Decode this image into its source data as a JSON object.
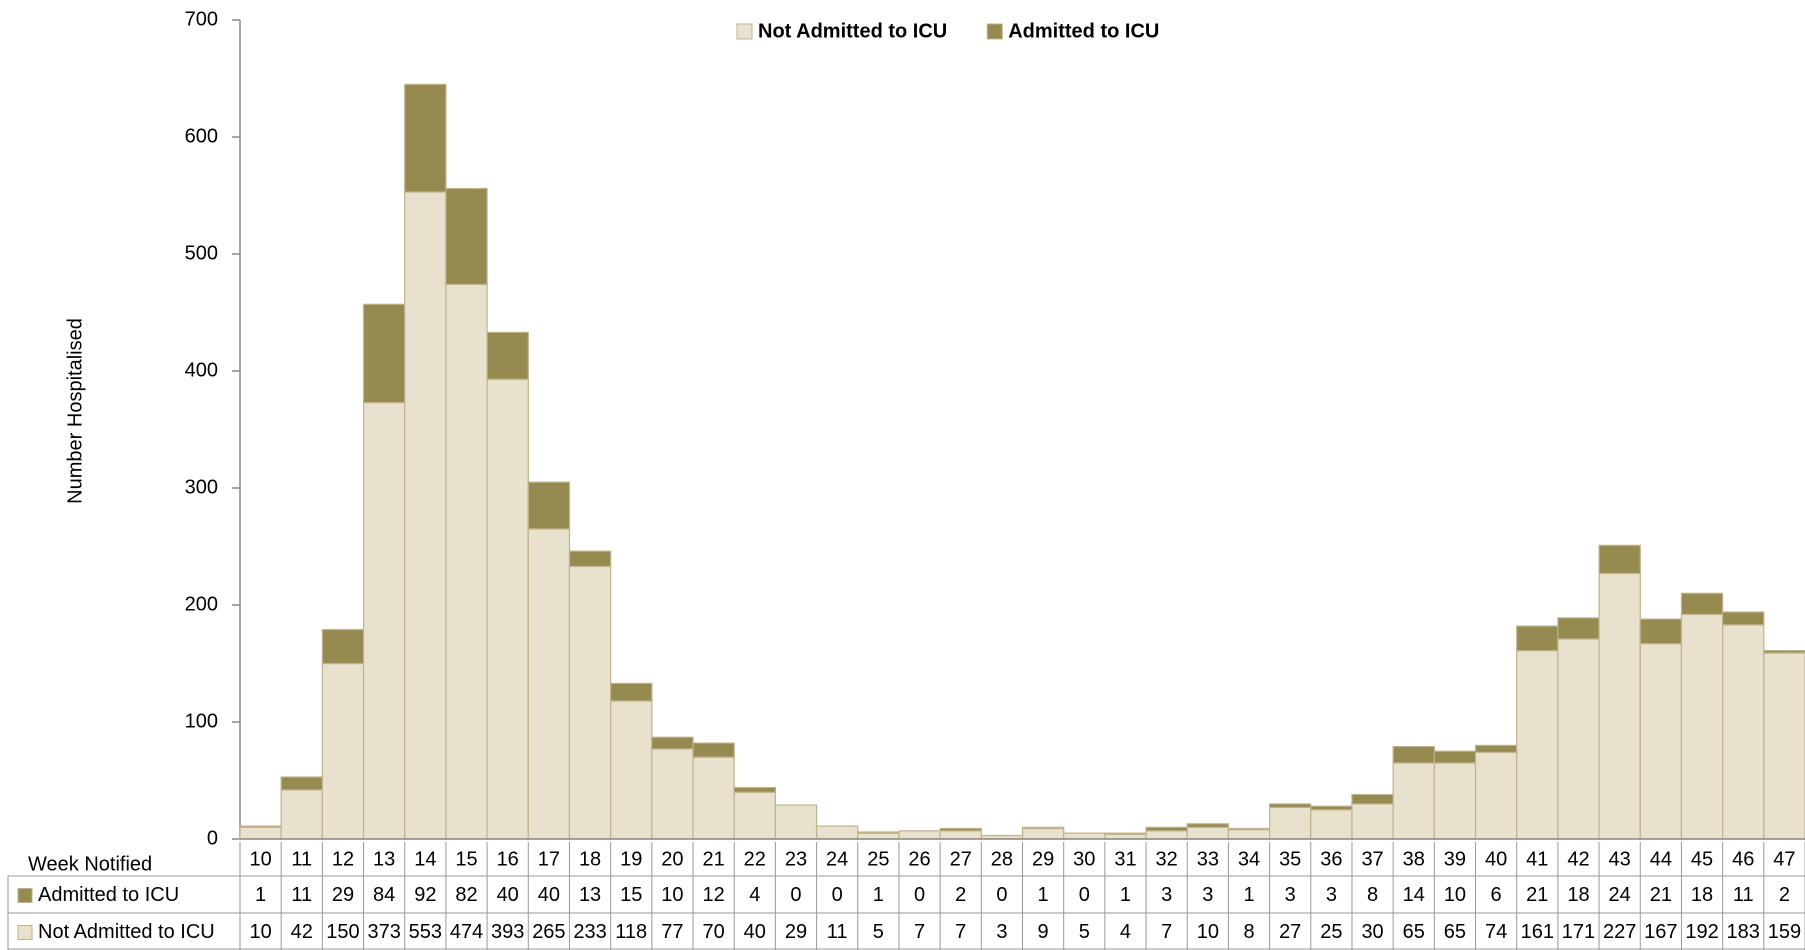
{
  "chart_data": {
    "type": "bar",
    "stacked": true,
    "y_label": "Number Hospitalised",
    "x_label": "Week Notified",
    "categories": [
      "10",
      "11",
      "12",
      "13",
      "14",
      "15",
      "16",
      "17",
      "18",
      "19",
      "20",
      "21",
      "22",
      "23",
      "24",
      "25",
      "26",
      "27",
      "28",
      "29",
      "30",
      "31",
      "32",
      "33",
      "34",
      "35",
      "36",
      "37",
      "38",
      "39",
      "40",
      "41",
      "42",
      "43",
      "44",
      "45",
      "46",
      "47"
    ],
    "series": [
      {
        "name": "Not Admitted to ICU",
        "color": "#e8e1cd",
        "values": [
          10,
          42,
          150,
          373,
          553,
          474,
          393,
          265,
          233,
          118,
          77,
          70,
          40,
          29,
          11,
          5,
          7,
          7,
          3,
          9,
          5,
          4,
          7,
          10,
          8,
          27,
          25,
          30,
          65,
          65,
          74,
          161,
          171,
          227,
          167,
          192,
          183,
          159
        ]
      },
      {
        "name": "Admitted to ICU",
        "color": "#958b51",
        "values": [
          1,
          11,
          29,
          84,
          92,
          82,
          40,
          40,
          13,
          15,
          10,
          12,
          4,
          0,
          0,
          1,
          0,
          2,
          0,
          1,
          0,
          1,
          3,
          3,
          1,
          3,
          3,
          8,
          14,
          10,
          6,
          21,
          18,
          24,
          21,
          18,
          11,
          2
        ]
      }
    ],
    "ylim": [
      0,
      700
    ],
    "yticks": [
      0,
      100,
      200,
      300,
      400,
      500,
      600,
      700
    ],
    "legend": "top",
    "grid": false
  }
}
